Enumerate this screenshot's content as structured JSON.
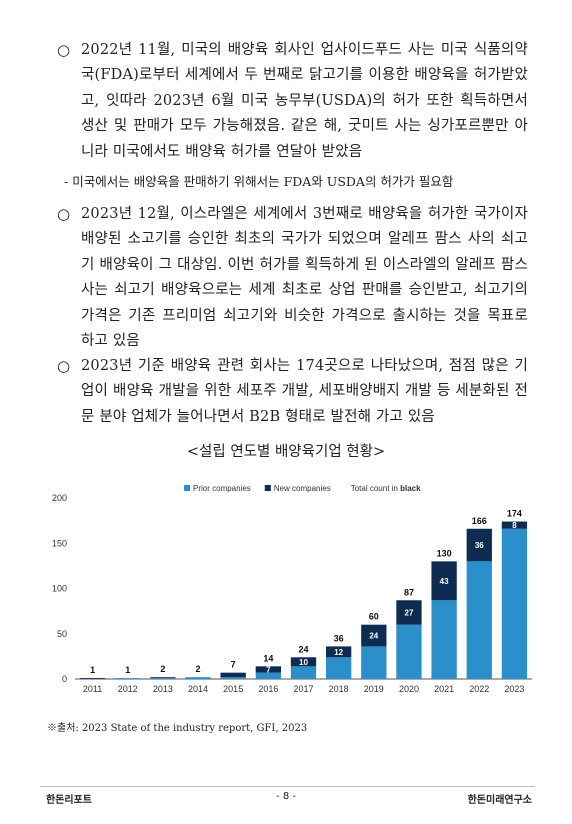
{
  "bullets": [
    {
      "marker": "○",
      "text": "2022년 11월, 미국의 배양육 회사인 업사이드푸드 사는 미국 식품의약국(FDA)로부터 세계에서 두 번째로 닭고기를 이용한 배양육을 허가받았고, 잇따라 2023년 6월 미국 농무부(USDA)의 허가 또한 획득하면서 생산 및 판매가 모두 가능해졌음. 같은 해, 굿미트 사는 싱가포르뿐만 아니라 미국에서도 배양육 허가를 연달아 받았음"
    },
    {
      "marker": "○",
      "text": "2023년 12월, 이스라엘은 세계에서 3번째로 배양육을 허가한 국가이자 배양된 소고기를 승인한 최초의 국가가 되었으며 알레프 팜스 사의 쇠고기 배양육이 그 대상임. 이번 허가를 획득하게 된 이스라엘의 알레프 팜스 사는 쇠고기 배양육으로는 세계 최초로 상업 판매를 승인받고, 쇠고기의 가격은 기존 프리미엄 쇠고기와 비슷한 가격으로 출시하는 것을 목표로 하고 있음"
    },
    {
      "marker": "○",
      "text": "2023년 기준 배양육 관련 회사는 174곳으로 나타났으며, 점점 많은 기업이 배양육 개발을 위한 세포주 개발, 세포배양배지 개발 등 세분화된 전문 분야 업체가 늘어나면서 B2B 형태로 발전해 가고 있음"
    }
  ],
  "sub_bullet": {
    "marker": "-",
    "text": "미국에서는 배양육을 판매하기 위해서는 FDA와 USDA의 허가가 필요함"
  },
  "caption": "<설립 연도별 배양육기업 현황>",
  "chart_data": {
    "type": "stacked_bar",
    "categories": [
      "2011",
      "2012",
      "2013",
      "2014",
      "2015",
      "2016",
      "2017",
      "2018",
      "2019",
      "2020",
      "2021",
      "2022",
      "2023"
    ],
    "series": [
      {
        "name": "Prior companies",
        "color": "#2b8fcb",
        "values": [
          0,
          1,
          1,
          2,
          2,
          7,
          14,
          24,
          36,
          60,
          87,
          130,
          166
        ]
      },
      {
        "name": "New companies",
        "color": "#0e2c52",
        "values": [
          1,
          0,
          1,
          0,
          5,
          7,
          10,
          12,
          24,
          27,
          43,
          36,
          8
        ],
        "value_labels": [
          null,
          null,
          null,
          null,
          null,
          "7",
          "10",
          "12",
          "24",
          "27",
          "43",
          "36",
          "8"
        ]
      }
    ],
    "totals": [
      1,
      1,
      2,
      2,
      7,
      14,
      24,
      36,
      60,
      87,
      130,
      166,
      174
    ],
    "legend_note": [
      "Total count in",
      "black"
    ],
    "ylim": [
      0,
      200
    ],
    "yticks": [
      0,
      50,
      100,
      150,
      200
    ],
    "grid": false
  },
  "source": "※출처: 2023 State of the industry report, GFI, 2023",
  "footer": {
    "left": "한돈리포트",
    "center": "- 8 -",
    "right": "한돈미래연구소"
  }
}
